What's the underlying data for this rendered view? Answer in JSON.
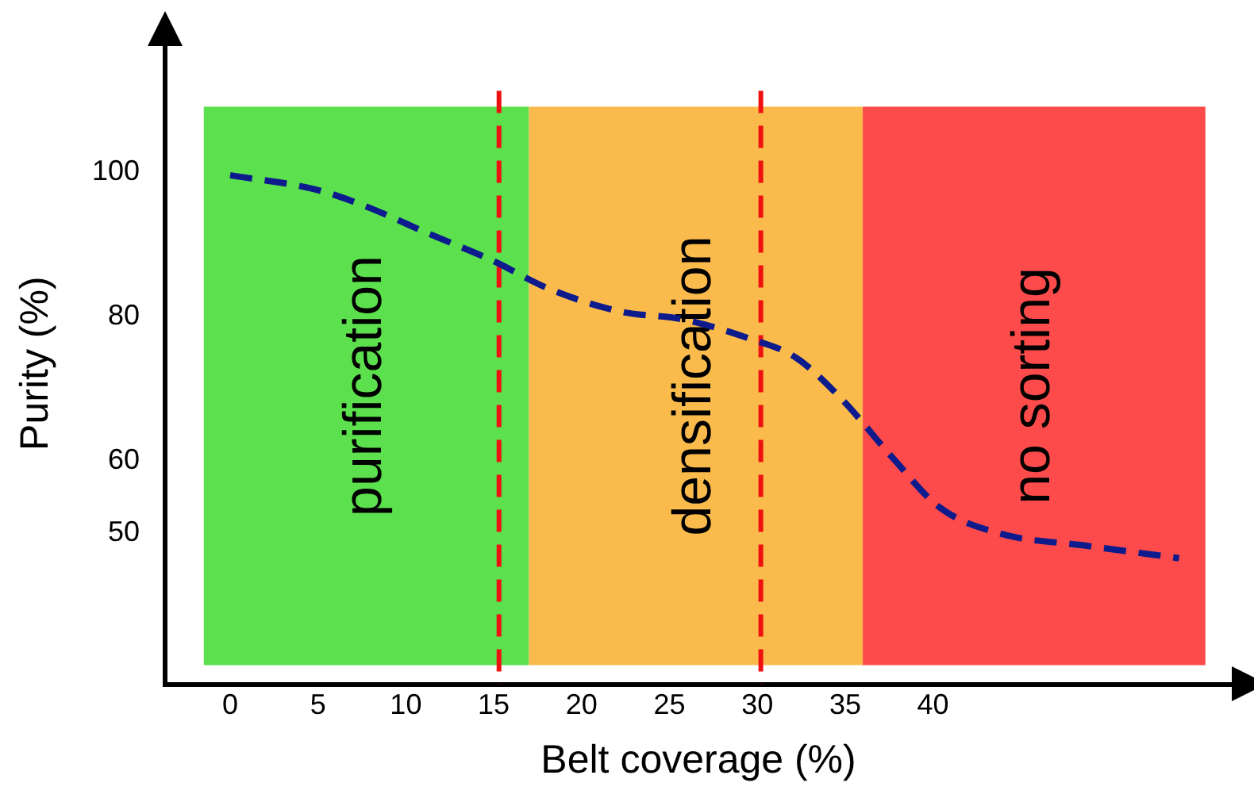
{
  "chart_data": {
    "type": "line",
    "xlabel": "Belt coverage (%)",
    "ylabel": "Purity (%)",
    "x": [
      0,
      4.9,
      7.6,
      11.3,
      14.9,
      18.1,
      22.2,
      25.8,
      29.5,
      32.2,
      34.9,
      37.6,
      40.4,
      44,
      48.5,
      54
    ],
    "series": [
      {
        "color": "#0d1b8c",
        "values": [
          99.6,
          97.6,
          95.4,
          91.5,
          87.8,
          83.9,
          80.7,
          79.6,
          77,
          74.3,
          68.3,
          60.7,
          53.5,
          49.8,
          48.3,
          46.5
        ]
      }
    ],
    "xlim": [
      -3.7,
      57
    ],
    "xticks": [
      0,
      5,
      10,
      15,
      20,
      25,
      30,
      35,
      40
    ],
    "ylim": [
      29,
      118
    ],
    "yticks": [
      50,
      60,
      80,
      100
    ],
    "bands": [
      {
        "axis": "x",
        "from": -1.5,
        "to": 17,
        "label": "purification",
        "color": "#5ce04e"
      },
      {
        "axis": "x",
        "from": 17,
        "to": 36,
        "label": "densification",
        "color": "#fbbb4c"
      },
      {
        "axis": "x",
        "from": 36,
        "to": 55.5,
        "label": "no sorting",
        "color": "#fd4b4b"
      }
    ],
    "ref_lines": [
      {
        "axis": "x",
        "value": 15.3,
        "color": "#ee1111",
        "line_style": "dashed"
      },
      {
        "axis": "x",
        "value": 30.2,
        "color": "#ee1111",
        "line_style": "dashed"
      }
    ],
    "grid": false,
    "legend": false,
    "marker": "none",
    "line_style": "dashed"
  }
}
